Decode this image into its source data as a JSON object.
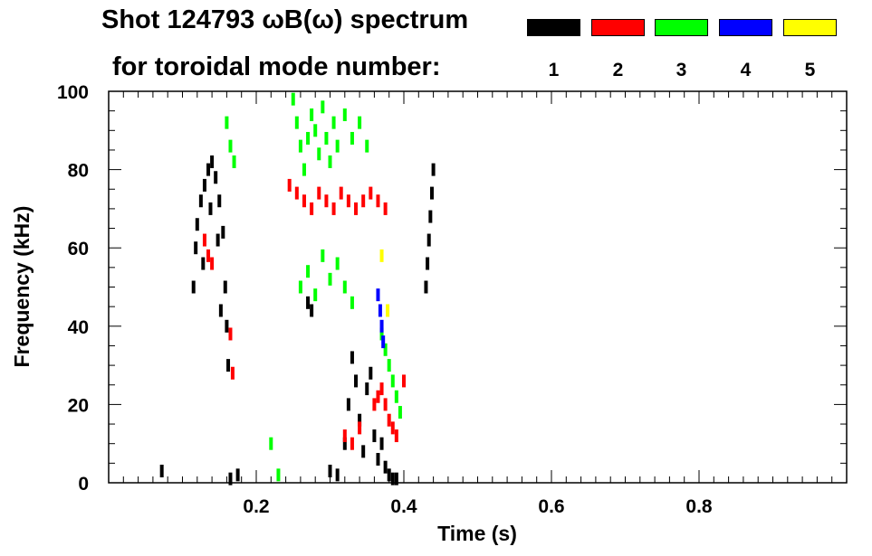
{
  "title": {
    "line1": "Shot 124793 ωB(ω) spectrum",
    "line2": "for toroidal mode number:"
  },
  "legend": [
    {
      "label": "1",
      "color": "#000000"
    },
    {
      "label": "2",
      "color": "#ff0000"
    },
    {
      "label": "3",
      "color": "#00ff00"
    },
    {
      "label": "4",
      "color": "#0000ff"
    },
    {
      "label": "5",
      "color": "#ffff00"
    }
  ],
  "chart_data": {
    "type": "scatter",
    "title": "Shot 124793 ωB(ω) spectrum",
    "xlabel": "Time (s)",
    "ylabel": "Frequency (kHz)",
    "xlim": [
      0.0,
      1.0
    ],
    "ylim": [
      0,
      100
    ],
    "xticks": [
      "0.2",
      "0.4",
      "0.6",
      "0.8"
    ],
    "xtick_values": [
      0.2,
      0.4,
      0.6,
      0.8
    ],
    "yticks": [
      "0",
      "20",
      "40",
      "60",
      "80",
      "100"
    ],
    "ytick_values": [
      0,
      20,
      40,
      60,
      80,
      100
    ],
    "grid": false,
    "legend_position": "top-right",
    "series": [
      {
        "name": "1",
        "color": "#000000",
        "points": [
          [
            0.072,
            3
          ],
          [
            0.115,
            50
          ],
          [
            0.118,
            60
          ],
          [
            0.12,
            66
          ],
          [
            0.125,
            72
          ],
          [
            0.13,
            76
          ],
          [
            0.135,
            80
          ],
          [
            0.14,
            82
          ],
          [
            0.145,
            78
          ],
          [
            0.15,
            72
          ],
          [
            0.155,
            64
          ],
          [
            0.158,
            50
          ],
          [
            0.16,
            40
          ],
          [
            0.162,
            30
          ],
          [
            0.128,
            56
          ],
          [
            0.138,
            70
          ],
          [
            0.148,
            62
          ],
          [
            0.152,
            44
          ],
          [
            0.175,
            2
          ],
          [
            0.165,
            1
          ],
          [
            0.27,
            46
          ],
          [
            0.275,
            44
          ],
          [
            0.3,
            3
          ],
          [
            0.31,
            2
          ],
          [
            0.32,
            10
          ],
          [
            0.325,
            20
          ],
          [
            0.33,
            32
          ],
          [
            0.335,
            26
          ],
          [
            0.34,
            16
          ],
          [
            0.345,
            8
          ],
          [
            0.35,
            24
          ],
          [
            0.355,
            28
          ],
          [
            0.36,
            12
          ],
          [
            0.365,
            6
          ],
          [
            0.37,
            10
          ],
          [
            0.375,
            4
          ],
          [
            0.38,
            2
          ],
          [
            0.385,
            1
          ],
          [
            0.39,
            1
          ],
          [
            0.43,
            50
          ],
          [
            0.432,
            56
          ],
          [
            0.434,
            62
          ],
          [
            0.436,
            68
          ],
          [
            0.438,
            74
          ],
          [
            0.44,
            80
          ]
        ]
      },
      {
        "name": "2",
        "color": "#ff0000",
        "points": [
          [
            0.13,
            62
          ],
          [
            0.135,
            58
          ],
          [
            0.14,
            56
          ],
          [
            0.165,
            38
          ],
          [
            0.168,
            28
          ],
          [
            0.245,
            76
          ],
          [
            0.255,
            74
          ],
          [
            0.265,
            72
          ],
          [
            0.275,
            70
          ],
          [
            0.285,
            74
          ],
          [
            0.295,
            72
          ],
          [
            0.305,
            70
          ],
          [
            0.315,
            74
          ],
          [
            0.325,
            72
          ],
          [
            0.335,
            70
          ],
          [
            0.345,
            72
          ],
          [
            0.355,
            74
          ],
          [
            0.365,
            72
          ],
          [
            0.375,
            70
          ],
          [
            0.32,
            12
          ],
          [
            0.33,
            10
          ],
          [
            0.34,
            14
          ],
          [
            0.36,
            20
          ],
          [
            0.365,
            22
          ],
          [
            0.37,
            24
          ],
          [
            0.375,
            20
          ],
          [
            0.38,
            16
          ],
          [
            0.385,
            14
          ],
          [
            0.39,
            12
          ],
          [
            0.4,
            26
          ]
        ]
      },
      {
        "name": "3",
        "color": "#00ff00",
        "points": [
          [
            0.16,
            92
          ],
          [
            0.165,
            86
          ],
          [
            0.17,
            82
          ],
          [
            0.25,
            98
          ],
          [
            0.255,
            92
          ],
          [
            0.26,
            86
          ],
          [
            0.265,
            80
          ],
          [
            0.27,
            88
          ],
          [
            0.275,
            94
          ],
          [
            0.28,
            90
          ],
          [
            0.285,
            84
          ],
          [
            0.29,
            96
          ],
          [
            0.295,
            88
          ],
          [
            0.3,
            82
          ],
          [
            0.305,
            92
          ],
          [
            0.31,
            86
          ],
          [
            0.32,
            94
          ],
          [
            0.33,
            88
          ],
          [
            0.34,
            92
          ],
          [
            0.35,
            86
          ],
          [
            0.26,
            50
          ],
          [
            0.27,
            54
          ],
          [
            0.28,
            48
          ],
          [
            0.29,
            58
          ],
          [
            0.3,
            52
          ],
          [
            0.31,
            56
          ],
          [
            0.32,
            50
          ],
          [
            0.33,
            46
          ],
          [
            0.37,
            38
          ],
          [
            0.375,
            34
          ],
          [
            0.38,
            30
          ],
          [
            0.385,
            26
          ],
          [
            0.39,
            22
          ],
          [
            0.395,
            18
          ],
          [
            0.22,
            10
          ],
          [
            0.23,
            2
          ]
        ]
      },
      {
        "name": "4",
        "color": "#0000ff",
        "points": [
          [
            0.365,
            48
          ],
          [
            0.368,
            44
          ],
          [
            0.37,
            40
          ],
          [
            0.372,
            36
          ]
        ]
      },
      {
        "name": "5",
        "color": "#ffff00",
        "points": [
          [
            0.37,
            58
          ],
          [
            0.378,
            44
          ]
        ]
      }
    ]
  }
}
